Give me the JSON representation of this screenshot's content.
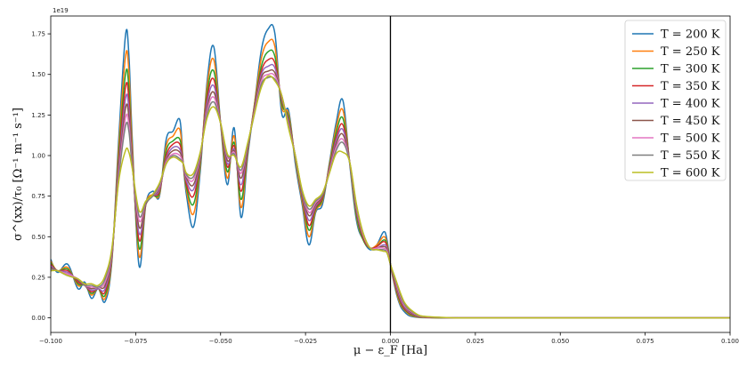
{
  "chart_data": {
    "type": "line",
    "title": "",
    "xlabel": "μ − ε_F [Ha]",
    "ylabel": "σ^(xx)/τ₀ [Ω⁻¹ m⁻¹ s⁻¹]",
    "y_offset_label": "1e19",
    "xlim": [
      -0.1,
      0.1
    ],
    "ylim": [
      -0.09,
      1.86
    ],
    "y_scale_factor": 1e+19,
    "xticks": [
      -0.1,
      -0.075,
      -0.05,
      -0.025,
      0.0,
      0.025,
      0.05,
      0.075,
      0.1
    ],
    "xtick_labels": [
      "−0.100",
      "−0.075",
      "−0.050",
      "−0.025",
      "0.000",
      "0.025",
      "0.050",
      "0.075",
      "0.100"
    ],
    "yticks": [
      0.0,
      0.25,
      0.5,
      0.75,
      1.0,
      1.25,
      1.5,
      1.75
    ],
    "ytick_labels": [
      "0.00",
      "0.25",
      "0.50",
      "0.75",
      "1.00",
      "1.25",
      "1.50",
      "1.75"
    ],
    "vertical_line_x": 0.0,
    "legend_position": "top-right",
    "grid": false,
    "x": [
      -0.1,
      -0.098,
      -0.095,
      -0.092,
      -0.09,
      -0.088,
      -0.086,
      -0.084,
      -0.082,
      -0.08,
      -0.078,
      -0.077,
      -0.076,
      -0.074,
      -0.072,
      -0.07,
      -0.068,
      -0.066,
      -0.064,
      -0.062,
      -0.061,
      -0.06,
      -0.058,
      -0.056,
      -0.054,
      -0.052,
      -0.05,
      -0.048,
      -0.046,
      -0.044,
      -0.042,
      -0.04,
      -0.038,
      -0.036,
      -0.034,
      -0.032,
      -0.03,
      -0.028,
      -0.026,
      -0.024,
      -0.022,
      -0.02,
      -0.018,
      -0.016,
      -0.014,
      -0.012,
      -0.01,
      -0.008,
      -0.006,
      -0.004,
      -0.002,
      -0.001,
      0.0,
      0.001,
      0.002,
      0.003,
      0.004,
      0.005,
      0.006,
      0.008,
      0.01,
      0.015,
      0.02,
      0.03,
      0.05,
      0.075,
      0.1
    ],
    "series": [
      {
        "name": "T = 200 K",
        "color": "#1f77b4",
        "values": [
          0.36,
          0.28,
          0.33,
          0.18,
          0.22,
          0.12,
          0.18,
          0.1,
          0.35,
          1.1,
          1.74,
          1.62,
          1.1,
          0.32,
          0.7,
          0.78,
          0.75,
          1.1,
          1.15,
          1.22,
          0.95,
          0.75,
          0.56,
          0.9,
          1.45,
          1.67,
          1.2,
          0.82,
          1.17,
          0.62,
          1.0,
          1.32,
          1.65,
          1.78,
          1.75,
          1.26,
          1.28,
          0.95,
          0.7,
          0.45,
          0.65,
          0.7,
          0.95,
          1.2,
          1.34,
          0.95,
          0.6,
          0.48,
          0.42,
          0.45,
          0.53,
          0.48,
          0.33,
          0.22,
          0.13,
          0.07,
          0.04,
          0.02,
          0.01,
          0.003,
          0.001,
          0.0,
          0.0,
          0.0,
          0.0,
          0.0,
          0.0
        ]
      },
      {
        "name": "T = 250 K",
        "color": "#ff7f0e",
        "values": [
          0.35,
          0.29,
          0.31,
          0.2,
          0.21,
          0.14,
          0.18,
          0.12,
          0.36,
          1.05,
          1.61,
          1.52,
          1.05,
          0.38,
          0.7,
          0.76,
          0.76,
          1.06,
          1.12,
          1.16,
          0.95,
          0.78,
          0.64,
          0.93,
          1.42,
          1.59,
          1.2,
          0.86,
          1.12,
          0.68,
          1.02,
          1.32,
          1.6,
          1.7,
          1.67,
          1.3,
          1.26,
          0.97,
          0.72,
          0.5,
          0.66,
          0.72,
          0.94,
          1.17,
          1.28,
          0.96,
          0.62,
          0.48,
          0.43,
          0.45,
          0.5,
          0.46,
          0.33,
          0.23,
          0.14,
          0.08,
          0.05,
          0.03,
          0.015,
          0.005,
          0.002,
          0.0,
          0.0,
          0.0,
          0.0,
          0.0,
          0.0
        ]
      },
      {
        "name": "T = 300 K",
        "color": "#2ca02c",
        "values": [
          0.34,
          0.29,
          0.3,
          0.21,
          0.2,
          0.15,
          0.18,
          0.14,
          0.37,
          1.0,
          1.5,
          1.42,
          1.0,
          0.43,
          0.7,
          0.75,
          0.77,
          1.03,
          1.09,
          1.1,
          0.95,
          0.8,
          0.7,
          0.95,
          1.38,
          1.52,
          1.2,
          0.9,
          1.08,
          0.73,
          1.03,
          1.31,
          1.55,
          1.64,
          1.61,
          1.32,
          1.24,
          0.98,
          0.74,
          0.54,
          0.67,
          0.73,
          0.93,
          1.14,
          1.23,
          0.96,
          0.63,
          0.48,
          0.43,
          0.44,
          0.48,
          0.45,
          0.33,
          0.24,
          0.15,
          0.09,
          0.055,
          0.035,
          0.02,
          0.007,
          0.003,
          0.0,
          0.0,
          0.0,
          0.0,
          0.0,
          0.0
        ]
      },
      {
        "name": "T = 350 K",
        "color": "#d62728",
        "values": [
          0.33,
          0.29,
          0.29,
          0.22,
          0.2,
          0.16,
          0.18,
          0.16,
          0.38,
          0.96,
          1.42,
          1.35,
          0.98,
          0.48,
          0.7,
          0.75,
          0.78,
          1.0,
          1.07,
          1.07,
          0.95,
          0.82,
          0.75,
          0.97,
          1.35,
          1.47,
          1.2,
          0.93,
          1.06,
          0.78,
          1.04,
          1.3,
          1.52,
          1.59,
          1.57,
          1.34,
          1.22,
          0.99,
          0.75,
          0.57,
          0.68,
          0.74,
          0.92,
          1.11,
          1.19,
          0.96,
          0.65,
          0.49,
          0.43,
          0.44,
          0.47,
          0.44,
          0.33,
          0.24,
          0.16,
          0.1,
          0.06,
          0.04,
          0.025,
          0.009,
          0.004,
          0.001,
          0.0,
          0.0,
          0.0,
          0.0,
          0.0
        ]
      },
      {
        "name": "T = 400 K",
        "color": "#9467bd",
        "values": [
          0.32,
          0.29,
          0.28,
          0.23,
          0.2,
          0.17,
          0.18,
          0.18,
          0.39,
          0.93,
          1.35,
          1.29,
          0.96,
          0.52,
          0.7,
          0.75,
          0.79,
          0.98,
          1.05,
          1.04,
          0.95,
          0.84,
          0.79,
          0.98,
          1.32,
          1.43,
          1.2,
          0.95,
          1.04,
          0.82,
          1.05,
          1.29,
          1.5,
          1.55,
          1.54,
          1.35,
          1.21,
          0.99,
          0.76,
          0.6,
          0.69,
          0.75,
          0.91,
          1.09,
          1.16,
          0.96,
          0.66,
          0.5,
          0.43,
          0.43,
          0.45,
          0.43,
          0.33,
          0.25,
          0.17,
          0.11,
          0.07,
          0.045,
          0.03,
          0.011,
          0.005,
          0.001,
          0.0,
          0.0,
          0.0,
          0.0,
          0.0
        ]
      },
      {
        "name": "T = 450 K",
        "color": "#8c564b",
        "values": [
          0.31,
          0.29,
          0.27,
          0.23,
          0.2,
          0.18,
          0.19,
          0.2,
          0.4,
          0.9,
          1.29,
          1.24,
          0.95,
          0.56,
          0.7,
          0.75,
          0.8,
          0.97,
          1.03,
          1.02,
          0.95,
          0.86,
          0.82,
          0.99,
          1.29,
          1.39,
          1.2,
          0.97,
          1.03,
          0.86,
          1.06,
          1.28,
          1.48,
          1.52,
          1.51,
          1.36,
          1.2,
          1.0,
          0.77,
          0.63,
          0.7,
          0.75,
          0.9,
          1.07,
          1.13,
          0.96,
          0.67,
          0.5,
          0.43,
          0.43,
          0.44,
          0.42,
          0.33,
          0.25,
          0.18,
          0.12,
          0.075,
          0.05,
          0.035,
          0.013,
          0.006,
          0.002,
          0.0,
          0.0,
          0.0,
          0.0,
          0.0
        ]
      },
      {
        "name": "T = 500 K",
        "color": "#e377c2",
        "values": [
          0.3,
          0.29,
          0.27,
          0.24,
          0.2,
          0.19,
          0.19,
          0.22,
          0.41,
          0.88,
          1.23,
          1.19,
          0.94,
          0.6,
          0.71,
          0.75,
          0.81,
          0.96,
          1.01,
          1.0,
          0.95,
          0.87,
          0.85,
          1.0,
          1.27,
          1.36,
          1.2,
          0.99,
          1.02,
          0.89,
          1.07,
          1.27,
          1.46,
          1.5,
          1.49,
          1.37,
          1.19,
          1.0,
          0.78,
          0.65,
          0.71,
          0.76,
          0.9,
          1.05,
          1.1,
          0.96,
          0.68,
          0.51,
          0.43,
          0.43,
          0.43,
          0.41,
          0.33,
          0.26,
          0.19,
          0.13,
          0.08,
          0.055,
          0.04,
          0.015,
          0.007,
          0.002,
          0.0,
          0.0,
          0.0,
          0.0,
          0.0
        ]
      },
      {
        "name": "T = 550 K",
        "color": "#7f7f7f",
        "values": [
          0.3,
          0.29,
          0.26,
          0.24,
          0.2,
          0.2,
          0.19,
          0.24,
          0.42,
          0.86,
          1.18,
          1.15,
          0.93,
          0.63,
          0.71,
          0.75,
          0.82,
          0.95,
          1.0,
          0.98,
          0.95,
          0.88,
          0.87,
          1.01,
          1.25,
          1.33,
          1.2,
          1.0,
          1.01,
          0.91,
          1.07,
          1.26,
          1.44,
          1.48,
          1.47,
          1.37,
          1.18,
          1.0,
          0.78,
          0.67,
          0.72,
          0.76,
          0.89,
          1.03,
          1.08,
          0.96,
          0.69,
          0.52,
          0.43,
          0.42,
          0.42,
          0.4,
          0.33,
          0.26,
          0.2,
          0.14,
          0.09,
          0.06,
          0.045,
          0.017,
          0.008,
          0.002,
          0.0,
          0.0,
          0.0,
          0.0,
          0.0
        ]
      },
      {
        "name": "T = 600 K",
        "color": "#bcbd22",
        "values": [
          0.29,
          0.29,
          0.26,
          0.24,
          0.21,
          0.21,
          0.2,
          0.26,
          0.43,
          0.84,
          1.03,
          1.02,
          0.92,
          0.66,
          0.72,
          0.76,
          0.83,
          0.95,
          0.99,
          0.97,
          0.95,
          0.89,
          0.89,
          1.02,
          1.23,
          1.3,
          1.2,
          1.01,
          1.0,
          0.93,
          1.08,
          1.26,
          1.42,
          1.49,
          1.46,
          1.37,
          1.17,
          1.0,
          0.79,
          0.69,
          0.73,
          0.77,
          0.89,
          1.01,
          1.02,
          0.96,
          0.7,
          0.52,
          0.43,
          0.42,
          0.41,
          0.4,
          0.33,
          0.27,
          0.21,
          0.15,
          0.1,
          0.07,
          0.05,
          0.02,
          0.009,
          0.003,
          0.0,
          0.0,
          0.0,
          0.0,
          0.0
        ]
      }
    ]
  }
}
